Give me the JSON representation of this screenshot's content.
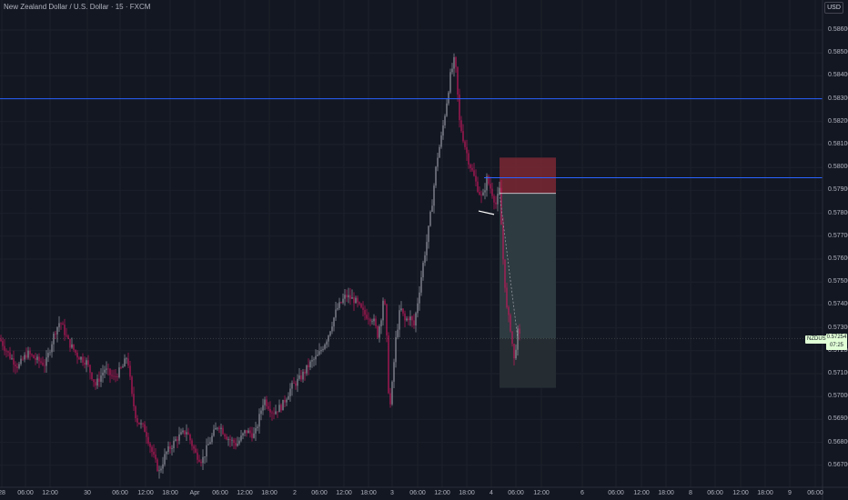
{
  "header": {
    "title": "New Zealand Dollar / U.S. Dollar · 15 · FXCM"
  },
  "currency_button": "USD",
  "price_axis": {
    "ticks": [
      "0.58600",
      "0.58500",
      "0.58400",
      "0.58300",
      "0.58200",
      "0.58100",
      "0.58000",
      "0.57900",
      "0.57800",
      "0.57700",
      "0.57600",
      "0.57500",
      "0.57400",
      "0.57300",
      "0.57200",
      "0.57100",
      "0.57000",
      "0.56900",
      "0.56800",
      "0.56700"
    ],
    "symbol_label": "NZDUSD",
    "last_price": "0.57254",
    "countdown": "07:25"
  },
  "time_axis": {
    "ticks": [
      "28",
      "06:00",
      "12:00",
      "30",
      "06:00",
      "12:00",
      "18:00",
      "Apr",
      "06:00",
      "12:00",
      "18:00",
      "2",
      "06:00",
      "12:00",
      "18:00",
      "3",
      "06:00",
      "12:00",
      "18:00",
      "4",
      "06:00",
      "12:00",
      "6",
      "06:00",
      "12:00",
      "18:00",
      "8",
      "06:00",
      "12:00",
      "18:00",
      "9",
      "06:00"
    ]
  },
  "drawings": {
    "horizontal_lines": [
      0.583,
      0.57955
    ],
    "position": {
      "stop": 0.58043,
      "entry": 0.57887,
      "target": 0.57038,
      "current": 0.57254
    }
  },
  "colors": {
    "background": "#131722",
    "bull": "#9598a1",
    "bear": "#c2185b",
    "hline": "#2962ff",
    "stop_zone": "#7a2834",
    "target_zone": "#2e3b40"
  }
}
